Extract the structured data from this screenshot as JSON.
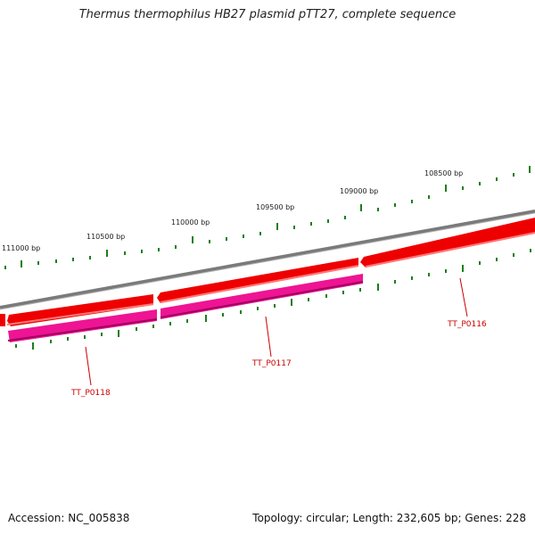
{
  "title": "Thermus thermophilus HB27 plasmid pTT27, complete sequence",
  "accession_text": "Accession: NC_005838",
  "summary_text": "Topology: circular; Length: 232,605 bp; Genes: 228",
  "scale_ticks": [
    {
      "label": "111000 bp"
    },
    {
      "label": "110500 bp"
    },
    {
      "label": "110000 bp"
    },
    {
      "label": "109500 bp"
    },
    {
      "label": "109000 bp"
    },
    {
      "label": "108500 bp"
    }
  ],
  "genes": [
    {
      "name": "TT_P0118"
    },
    {
      "name": "TT_P0117"
    },
    {
      "name": "TT_P0116"
    }
  ],
  "colors": {
    "backbone": "#7f7f7f",
    "forward_strand": "#ee0000",
    "reverse_strand": "#ee1493",
    "tick": "#1a7f1a",
    "gene_label": "#cc0000"
  }
}
